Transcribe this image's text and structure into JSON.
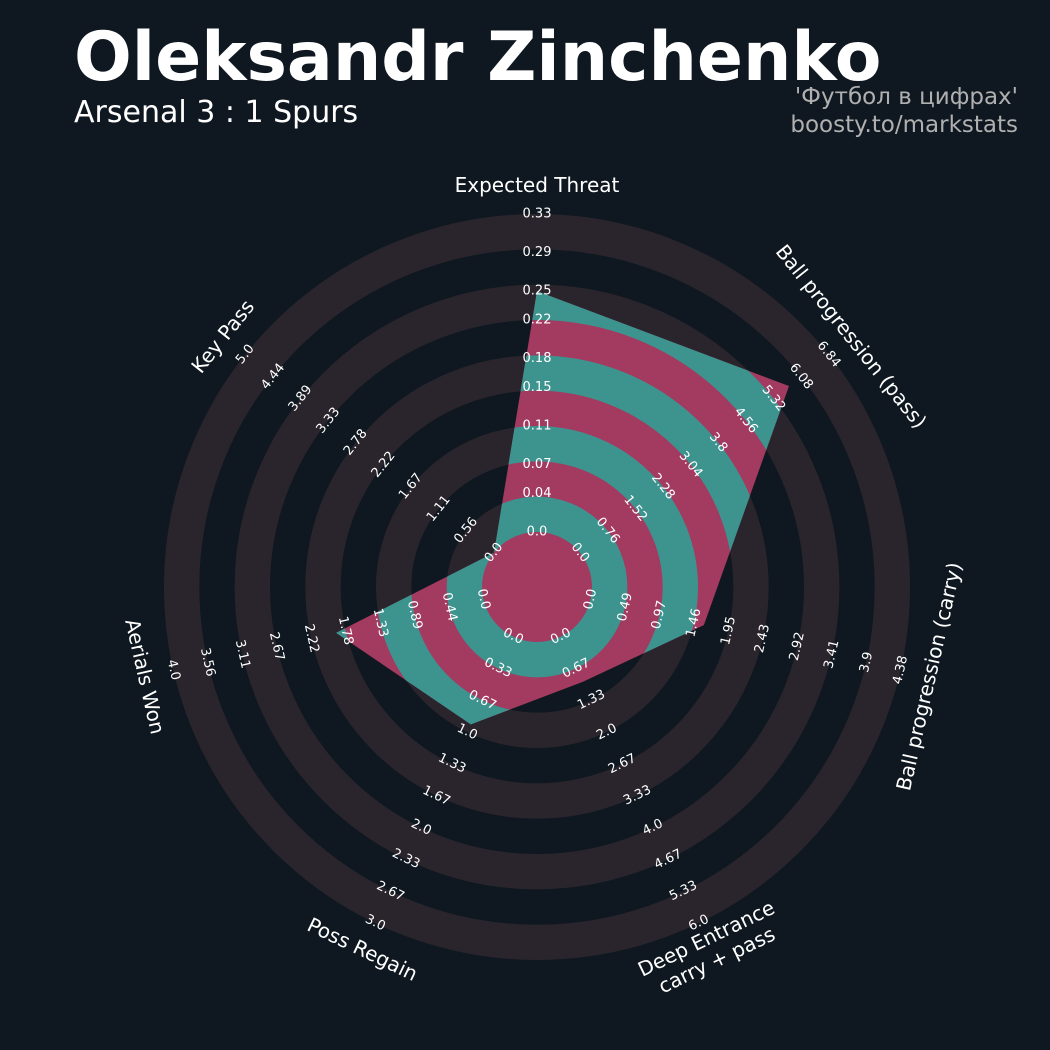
{
  "chart_data": {
    "type": "radar",
    "title": "Oleksandr Zinchenko",
    "subtitle": "Arsenal 3 : 1 Spurs",
    "annotations": [
      "'Футбол в цифрах'",
      "boosty.to/markstats"
    ],
    "categories": [
      "Expected Threat",
      "Ball progression (pass)",
      "Ball progression (carry)",
      "Deep Entrance\ncarry + pass",
      "Poss Regain",
      "Aerials Won",
      "Key Pass"
    ],
    "series": [
      {
        "color": "#3d948f",
        "values": [
          0.25,
          5.75,
          1.6,
          0.95,
          0.92,
          1.9,
          0.0
        ]
      }
    ],
    "ring_color": "#2a252c",
    "overlap_color": "#a33a60",
    "radar_axes": [
      {
        "lim": [
          0,
          0.33
        ],
        "ticks": [
          {
            "value": 0,
            "label": "0.0"
          },
          0.04,
          0.07,
          0.11,
          0.15,
          0.18,
          0.22,
          0.25,
          0.29,
          0.33
        ]
      },
      {
        "lim": [
          0,
          6.84
        ],
        "ticks": [
          {
            "value": 0,
            "label": "0.0"
          },
          0.76,
          1.52,
          2.28,
          3.04,
          3.8,
          4.56,
          5.32,
          6.08,
          6.84
        ]
      },
      {
        "lim": [
          0,
          4.38
        ],
        "ticks": [
          {
            "value": 0,
            "label": "0.0"
          },
          0.49,
          0.97,
          1.46,
          1.95,
          2.43,
          2.92,
          3.41,
          3.9,
          4.38
        ]
      },
      {
        "lim": [
          0,
          6
        ],
        "ticks": [
          {
            "value": 0,
            "label": "0.0"
          },
          0.67,
          1.33,
          {
            "value": 2,
            "label": "2.0"
          },
          2.67,
          3.33,
          {
            "value": 4,
            "label": "4.0"
          },
          4.67,
          5.33,
          {
            "value": 6,
            "label": "6.0"
          }
        ]
      },
      {
        "lim": [
          0,
          3
        ],
        "ticks": [
          {
            "value": 0,
            "label": "0.0"
          },
          0.33,
          0.67,
          {
            "value": 1,
            "label": "1.0"
          },
          1.33,
          1.67,
          {
            "value": 2,
            "label": "2.0"
          },
          2.33,
          2.67,
          {
            "value": 3,
            "label": "3.0"
          }
        ]
      },
      {
        "lim": [
          0,
          4
        ],
        "ticks": [
          {
            "value": 0,
            "label": "0.0"
          },
          0.44,
          0.89,
          1.33,
          1.78,
          2.22,
          2.67,
          3.11,
          3.56,
          {
            "value": 4,
            "label": "4.0"
          }
        ]
      },
      {
        "lim": [
          0,
          5
        ],
        "ticks": [
          {
            "value": 0,
            "label": "0.0"
          },
          0.56,
          1.11,
          1.67,
          2.22,
          2.78,
          3.33,
          3.89,
          4.44,
          {
            "value": 5,
            "label": "5.0"
          }
        ]
      }
    ]
  }
}
